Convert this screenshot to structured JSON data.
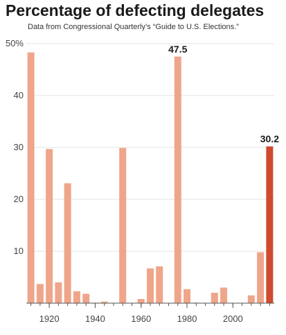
{
  "chart_data": {
    "type": "bar",
    "title": "Percentage of defecting delegates",
    "subtitle": "Data from Congressional Quarterly’s “Guide to U.S. Elections.”",
    "x": [
      1912,
      1916,
      1920,
      1924,
      1928,
      1932,
      1936,
      1940,
      1944,
      1948,
      1952,
      1956,
      1960,
      1964,
      1968,
      1972,
      1976,
      1980,
      1984,
      1988,
      1992,
      1996,
      2000,
      2004,
      2008,
      2012,
      2016
    ],
    "values": [
      48.3,
      3.7,
      29.7,
      4.0,
      23.1,
      2.3,
      1.8,
      0.1,
      0.3,
      0.0,
      29.9,
      0.0,
      0.8,
      6.7,
      7.1,
      0.0,
      47.5,
      2.7,
      0.1,
      0.0,
      2.0,
      3.0,
      0.0,
      0.0,
      1.5,
      9.8,
      30.2
    ],
    "highlight_index": 26,
    "data_labels": [
      {
        "index": 16,
        "text": "47.5"
      },
      {
        "index": 26,
        "text": "30.2"
      }
    ],
    "ylim": [
      0,
      50
    ],
    "y_ticks": [
      {
        "value": 10,
        "label": "10"
      },
      {
        "value": 20,
        "label": "20"
      },
      {
        "value": 30,
        "label": "30"
      },
      {
        "value": 40,
        "label": "40"
      },
      {
        "value": 50,
        "label": "50%"
      }
    ],
    "x_ticks": [
      {
        "value": 1920,
        "label": "1920"
      },
      {
        "value": 1940,
        "label": "1940"
      },
      {
        "value": 1960,
        "label": "1960"
      },
      {
        "value": 1980,
        "label": "1980"
      },
      {
        "value": 2000,
        "label": "2000"
      }
    ],
    "xlim": [
      1910,
      2018
    ],
    "grid": true,
    "colors": {
      "bar": "#efa58a",
      "highlight": "#cf4a2e",
      "grid": "#e3e3e3",
      "axis": "#555555"
    }
  }
}
